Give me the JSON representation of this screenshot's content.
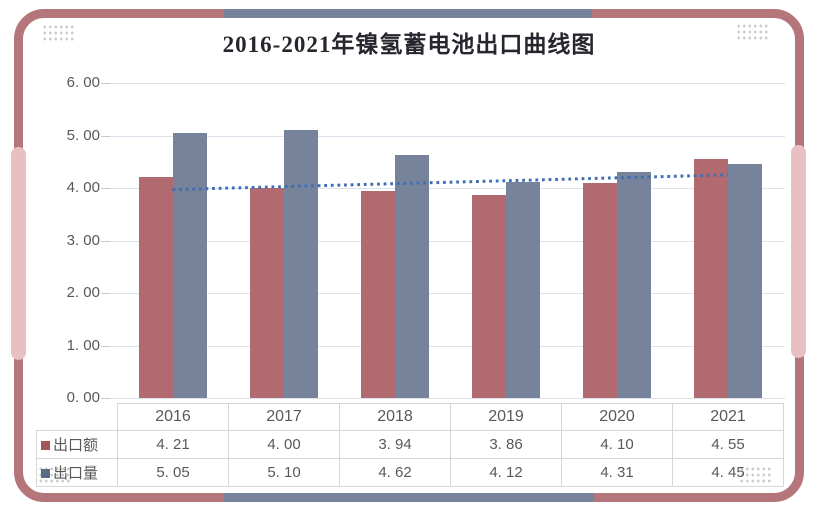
{
  "frame": {
    "border_color": "#b5767b",
    "accent_color": "#76839a",
    "band_color": "#e9c0c2"
  },
  "chart_data": {
    "type": "bar",
    "title": "2016-2021年镍氢蓄电池出口曲线图",
    "categories": [
      "2016",
      "2017",
      "2018",
      "2019",
      "2020",
      "2021"
    ],
    "series": [
      {
        "name": "出口额",
        "color": "#b16a6f",
        "values": [
          4.21,
          4.0,
          3.94,
          3.86,
          4.1,
          4.55
        ]
      },
      {
        "name": "出口量",
        "color": "#76839b",
        "values": [
          5.05,
          5.1,
          4.62,
          4.12,
          4.31,
          4.45
        ]
      }
    ],
    "trendline": {
      "series": "出口额",
      "color": "#3e6fb4",
      "style": "dotted",
      "start_value": 3.97,
      "end_value": 4.25
    },
    "ylim": [
      0,
      6
    ],
    "ytick_step": 1,
    "yticks": [
      "0. 00",
      "1. 00",
      "2. 00",
      "3. 00",
      "4. 00",
      "5. 00",
      "6. 00"
    ],
    "grid": true,
    "legend_position": "data-table-left"
  },
  "data_table": {
    "header": [
      "2016",
      "2017",
      "2018",
      "2019",
      "2020",
      "2021"
    ],
    "rows": [
      {
        "label": "出口额",
        "marker_color": "#a4565c",
        "cells": [
          "4. 21",
          "4. 00",
          "3. 94",
          "3. 86",
          "4. 10",
          "4. 55"
        ]
      },
      {
        "label": "出口量",
        "marker_color": "#5b6b85",
        "cells": [
          "5. 05",
          "5. 10",
          "4. 62",
          "4. 12",
          "4. 31",
          "4. 45"
        ]
      }
    ]
  }
}
